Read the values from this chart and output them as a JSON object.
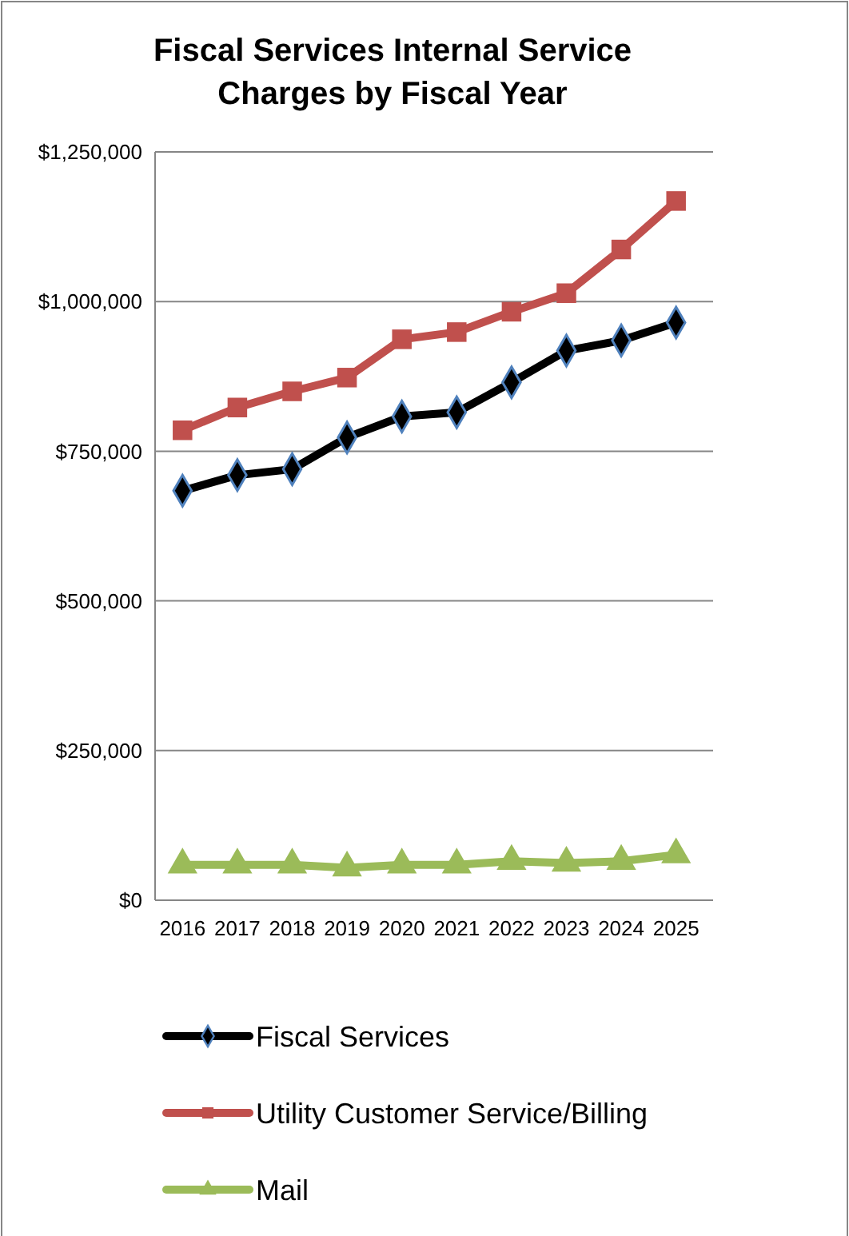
{
  "chart_data": {
    "type": "line",
    "title": "Fiscal Services Internal Service Charges by Fiscal Year",
    "categories": [
      "2016",
      "2017",
      "2018",
      "2019",
      "2020",
      "2021",
      "2022",
      "2023",
      "2024",
      "2025"
    ],
    "series": [
      {
        "name": "Fiscal Services",
        "color": "#000000",
        "marker": "diamond",
        "values": [
          684000,
          710000,
          720000,
          773000,
          808000,
          815000,
          865000,
          918000,
          935000,
          965000
        ]
      },
      {
        "name": "Utility Customer Service/Billing",
        "color": "#c0504d",
        "marker": "square",
        "values": [
          785000,
          823000,
          850000,
          873000,
          937000,
          949000,
          983000,
          1014000,
          1087000,
          1168000
        ]
      },
      {
        "name": "Mail",
        "color": "#9bbb59",
        "marker": "triangle",
        "values": [
          59000,
          59000,
          59000,
          54000,
          59000,
          59000,
          65000,
          62000,
          65000,
          76000
        ]
      }
    ],
    "ylim": [
      0,
      1250000
    ],
    "yticks": [
      {
        "value": 0,
        "label": "$0"
      },
      {
        "value": 250000,
        "label": "$250,000"
      },
      {
        "value": 500000,
        "label": "$500,000"
      },
      {
        "value": 750000,
        "label": "$750,000"
      },
      {
        "value": 1000000,
        "label": "$1,000,000"
      },
      {
        "value": 1250000,
        "label": "$1,250,000"
      }
    ],
    "grid": "y",
    "legend": "bottom"
  }
}
